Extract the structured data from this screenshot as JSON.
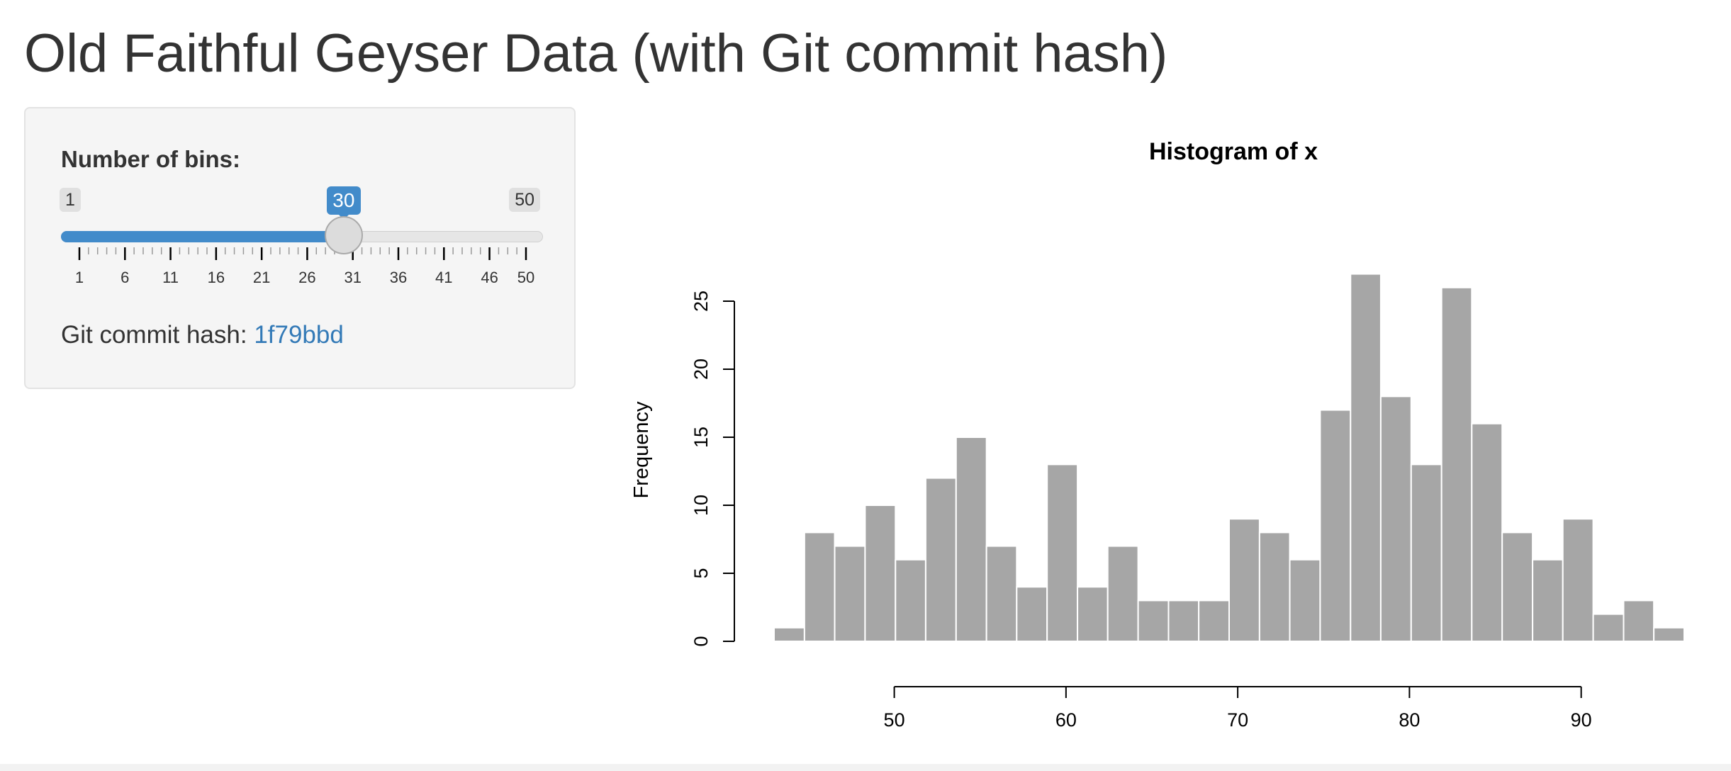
{
  "page": {
    "title": "Old Faithful Geyser Data (with Git commit hash)"
  },
  "sidebar": {
    "slider": {
      "label": "Number of bins:",
      "min": 1,
      "max": 50,
      "value": 30,
      "min_label": "1",
      "max_label": "50",
      "value_label": "30",
      "tick_labels": [
        "1",
        "6",
        "11",
        "16",
        "21",
        "26",
        "31",
        "36",
        "41",
        "46",
        "50"
      ]
    },
    "git": {
      "label": "Git commit hash:",
      "hash": "1f79bbd"
    }
  },
  "colors": {
    "accent": "#428bca",
    "link": "#337ab7",
    "bar_fill": "#a6a6a6",
    "bar_edge": "#ffffff",
    "panel_bg": "#f5f5f5"
  },
  "chart_data": {
    "type": "bar",
    "title": "Histogram of x",
    "xlabel": "",
    "ylabel": "Frequency",
    "bin_edges": [
      43,
      44.77,
      46.53,
      48.3,
      50.07,
      51.83,
      53.6,
      55.37,
      57.13,
      58.9,
      60.67,
      62.43,
      64.2,
      65.97,
      67.73,
      69.5,
      71.27,
      73.03,
      74.8,
      76.57,
      78.33,
      80.1,
      81.87,
      83.63,
      85.4,
      87.17,
      88.93,
      90.7,
      92.47,
      94.23,
      96
    ],
    "values": [
      1,
      8,
      7,
      10,
      6,
      12,
      15,
      7,
      4,
      13,
      4,
      7,
      3,
      3,
      3,
      9,
      8,
      6,
      17,
      27,
      18,
      13,
      26,
      16,
      8,
      6,
      9,
      2,
      3,
      1
    ],
    "xticks": [
      50,
      60,
      70,
      80,
      90
    ],
    "yticks": [
      0,
      5,
      10,
      15,
      20,
      25
    ],
    "xlim": [
      43,
      96
    ],
    "ylim": [
      0,
      27
    ],
    "grid": false,
    "legend": "none"
  }
}
